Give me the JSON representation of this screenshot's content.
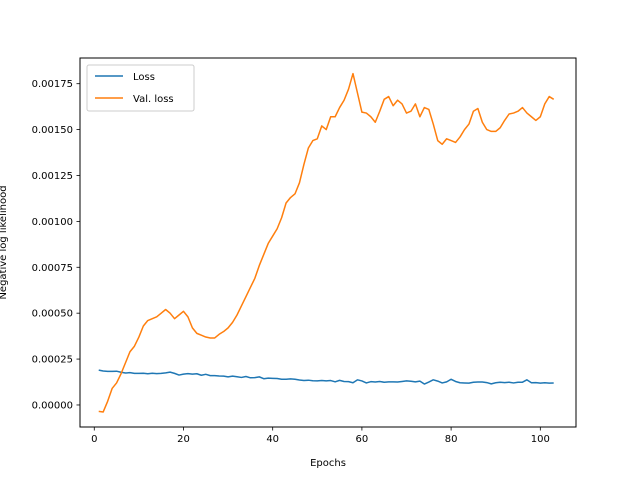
{
  "chart_data": {
    "type": "line",
    "title": "",
    "xlabel": "Epochs",
    "ylabel": "Negative log likelihood",
    "xlim": [
      -3.2,
      108
    ],
    "ylim": [
      -0.00012,
      0.00189
    ],
    "xticks": [
      0,
      20,
      40,
      60,
      80,
      100
    ],
    "xtick_labels": [
      "0",
      "20",
      "40",
      "60",
      "80",
      "100"
    ],
    "yticks": [
      0,
      0.00025,
      0.0005,
      0.00075,
      0.001,
      0.00125,
      0.0015,
      0.00175
    ],
    "ytick_labels": [
      "0.00000",
      "0.00025",
      "0.00050",
      "0.00075",
      "0.00100",
      "0.00125",
      "0.00150",
      "0.00175"
    ],
    "grid": false,
    "legend_position": "top-left",
    "series": [
      {
        "name": "Loss",
        "color": "#1f77b4",
        "x": [
          1,
          2,
          3,
          4,
          5,
          6,
          7,
          8,
          9,
          10,
          11,
          12,
          13,
          14,
          15,
          16,
          17,
          18,
          19,
          20,
          21,
          22,
          23,
          24,
          25,
          26,
          27,
          28,
          29,
          30,
          31,
          32,
          33,
          34,
          35,
          36,
          37,
          38,
          39,
          40,
          41,
          42,
          43,
          44,
          45,
          46,
          47,
          48,
          49,
          50,
          51,
          52,
          53,
          54,
          55,
          56,
          57,
          58,
          59,
          60,
          61,
          62,
          63,
          64,
          65,
          66,
          67,
          68,
          69,
          70,
          71,
          72,
          73,
          74,
          75,
          76,
          77,
          78,
          79,
          80,
          81,
          82,
          83,
          84,
          85,
          86,
          87,
          88,
          89,
          90,
          91,
          92,
          93,
          94,
          95,
          96,
          97,
          98,
          99,
          100,
          101,
          102,
          103
        ],
        "y": [
          0.00019,
          0.000185,
          0.000183,
          0.000183,
          0.000184,
          0.000178,
          0.000174,
          0.000176,
          0.000172,
          0.000172,
          0.000173,
          0.00017,
          0.000173,
          0.000171,
          0.000172,
          0.000175,
          0.000179,
          0.000172,
          0.000163,
          0.000168,
          0.000171,
          0.000168,
          0.00017,
          0.000162,
          0.000167,
          0.00016,
          0.00016,
          0.000158,
          0.000157,
          0.000153,
          0.000157,
          0.000154,
          0.00015,
          0.000155,
          0.000148,
          0.000149,
          0.000153,
          0.000143,
          0.000146,
          0.000145,
          0.000144,
          0.00014,
          0.00014,
          0.000142,
          0.00014,
          0.000136,
          0.000133,
          0.000135,
          0.000132,
          0.000131,
          0.000133,
          0.000131,
          0.000133,
          0.000126,
          0.000134,
          0.000128,
          0.000127,
          0.000121,
          0.000137,
          0.000131,
          0.00012,
          0.000127,
          0.000125,
          0.000128,
          0.000124,
          0.000126,
          0.000126,
          0.000125,
          0.000128,
          0.000131,
          0.000129,
          0.000126,
          0.00013,
          0.000114,
          0.000125,
          0.000137,
          0.00013,
          0.00012,
          0.000126,
          0.00014,
          0.000128,
          0.000121,
          0.00012,
          0.000119,
          0.000124,
          0.000125,
          0.000125,
          0.000122,
          0.000115,
          0.000121,
          0.000124,
          0.000122,
          0.000124,
          0.00012,
          0.000124,
          0.000124,
          0.000137,
          0.000121,
          0.000122,
          0.000119,
          0.000121,
          0.000119,
          0.00012
        ]
      },
      {
        "name": "Val. loss",
        "color": "#ff7f0e",
        "x": [
          1,
          2,
          3,
          4,
          5,
          6,
          7,
          8,
          9,
          10,
          11,
          12,
          13,
          14,
          15,
          16,
          17,
          18,
          19,
          20,
          21,
          22,
          23,
          24,
          25,
          26,
          27,
          28,
          29,
          30,
          31,
          32,
          33,
          34,
          35,
          36,
          37,
          38,
          39,
          40,
          41,
          42,
          43,
          44,
          45,
          46,
          47,
          48,
          49,
          50,
          51,
          52,
          53,
          54,
          55,
          56,
          57,
          58,
          59,
          60,
          61,
          62,
          63,
          64,
          65,
          66,
          67,
          68,
          69,
          70,
          71,
          72,
          73,
          74,
          75,
          76,
          77,
          78,
          79,
          80,
          81,
          82,
          83,
          84,
          85,
          86,
          87,
          88,
          89,
          90,
          91,
          92,
          93,
          94,
          95,
          96,
          97,
          98,
          99,
          100,
          101,
          102,
          103
        ],
        "y": [
          -3.5e-05,
          -3.8e-05,
          2e-05,
          9e-05,
          0.00012,
          0.00017,
          0.00023,
          0.00029,
          0.00032,
          0.00037,
          0.00043,
          0.00046,
          0.00047,
          0.00048,
          0.0005,
          0.00052,
          0.0005,
          0.00047,
          0.00049,
          0.00051,
          0.00048,
          0.00042,
          0.00039,
          0.00038,
          0.00037,
          0.000365,
          0.000365,
          0.000385,
          0.0004,
          0.00042,
          0.00045,
          0.00049,
          0.00054,
          0.00059,
          0.00064,
          0.00069,
          0.00076,
          0.00082,
          0.00088,
          0.00092,
          0.00096,
          0.00102,
          0.0011,
          0.00113,
          0.00115,
          0.00121,
          0.00131,
          0.0014,
          0.00144,
          0.00145,
          0.00152,
          0.0015,
          0.00157,
          0.00157,
          0.00162,
          0.00166,
          0.00172,
          0.001805,
          0.0017,
          0.001595,
          0.00159,
          0.00157,
          0.00154,
          0.0016,
          0.001665,
          0.00168,
          0.00163,
          0.00166,
          0.00164,
          0.00159,
          0.0016,
          0.00164,
          0.00157,
          0.00162,
          0.00161,
          0.00153,
          0.00144,
          0.00142,
          0.00145,
          0.00144,
          0.00143,
          0.00146,
          0.0015,
          0.00153,
          0.0016,
          0.001615,
          0.00154,
          0.0015,
          0.00149,
          0.00149,
          0.00151,
          0.00155,
          0.001585,
          0.00159,
          0.0016,
          0.00162,
          0.00159,
          0.00157,
          0.00155,
          0.00157,
          0.00164,
          0.00168,
          0.001665
        ]
      }
    ]
  }
}
